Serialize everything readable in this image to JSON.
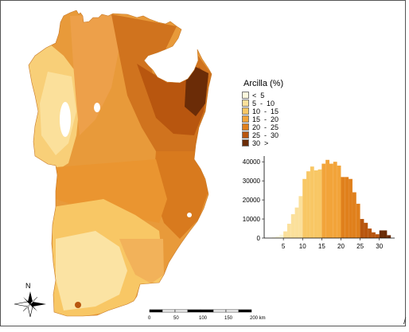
{
  "legend": {
    "title": "Arcilla (%)",
    "items": [
      {
        "label": "<  5",
        "color": "#fdf8dc"
      },
      {
        "label": "5  -  10",
        "color": "#fbe09b"
      },
      {
        "label": "10  -  15",
        "color": "#f8c765"
      },
      {
        "label": "15  -  20",
        "color": "#f2a43a"
      },
      {
        "label": "20  -  25",
        "color": "#e0801c"
      },
      {
        "label": "25  -  30",
        "color": "#b8560f"
      },
      {
        "label": "30  >",
        "color": "#6b2c07"
      }
    ]
  },
  "chart_data": {
    "type": "bar",
    "title": "",
    "xlabel": "",
    "ylabel": "",
    "x_ticks": [
      5,
      10,
      15,
      20,
      25,
      30
    ],
    "y_ticks": [
      0,
      10000,
      20000,
      30000,
      40000
    ],
    "xlim": [
      0,
      34
    ],
    "ylim": [
      0,
      43000
    ],
    "bin_width": 1,
    "bins": [
      {
        "x": 0,
        "value": 100,
        "color": "#fdf8dc"
      },
      {
        "x": 1,
        "value": 200,
        "color": "#fdf8dc"
      },
      {
        "x": 2,
        "value": 400,
        "color": "#fdf8dc"
      },
      {
        "x": 3,
        "value": 900,
        "color": "#fdf8dc"
      },
      {
        "x": 4,
        "value": 1800,
        "color": "#fdf8dc"
      },
      {
        "x": 5,
        "value": 3500,
        "color": "#fbe09b"
      },
      {
        "x": 6,
        "value": 7500,
        "color": "#fbe09b"
      },
      {
        "x": 7,
        "value": 12500,
        "color": "#fbe09b"
      },
      {
        "x": 8,
        "value": 16000,
        "color": "#fbe09b"
      },
      {
        "x": 9,
        "value": 22000,
        "color": "#fbe09b"
      },
      {
        "x": 10,
        "value": 31000,
        "color": "#f8c765"
      },
      {
        "x": 11,
        "value": 35000,
        "color": "#f8c765"
      },
      {
        "x": 12,
        "value": 37500,
        "color": "#f8c765"
      },
      {
        "x": 13,
        "value": 35500,
        "color": "#f8c765"
      },
      {
        "x": 14,
        "value": 36000,
        "color": "#f8c765"
      },
      {
        "x": 15,
        "value": 39000,
        "color": "#f2a43a"
      },
      {
        "x": 16,
        "value": 41000,
        "color": "#f2a43a"
      },
      {
        "x": 17,
        "value": 39000,
        "color": "#f2a43a"
      },
      {
        "x": 18,
        "value": 40000,
        "color": "#f2a43a"
      },
      {
        "x": 19,
        "value": 38000,
        "color": "#f2a43a"
      },
      {
        "x": 20,
        "value": 32000,
        "color": "#e0801c"
      },
      {
        "x": 21,
        "value": 32000,
        "color": "#e0801c"
      },
      {
        "x": 22,
        "value": 31000,
        "color": "#e0801c"
      },
      {
        "x": 23,
        "value": 24000,
        "color": "#e0801c"
      },
      {
        "x": 24,
        "value": 18000,
        "color": "#e0801c"
      },
      {
        "x": 25,
        "value": 10000,
        "color": "#b8560f"
      },
      {
        "x": 26,
        "value": 8000,
        "color": "#b8560f"
      },
      {
        "x": 27,
        "value": 5000,
        "color": "#b8560f"
      },
      {
        "x": 28,
        "value": 3000,
        "color": "#b8560f"
      },
      {
        "x": 29,
        "value": 2000,
        "color": "#b8560f"
      },
      {
        "x": 30,
        "value": 4000,
        "color": "#6b2c07"
      },
      {
        "x": 31,
        "value": 4000,
        "color": "#6b2c07"
      },
      {
        "x": 32,
        "value": 1500,
        "color": "#6b2c07"
      }
    ]
  },
  "compass": {
    "label": "N"
  },
  "scale_bar": {
    "labels": [
      "0",
      "50",
      "100",
      "150",
      "200 km"
    ],
    "values": [
      0,
      50,
      100,
      150,
      200
    ]
  },
  "corner_mark": "/"
}
